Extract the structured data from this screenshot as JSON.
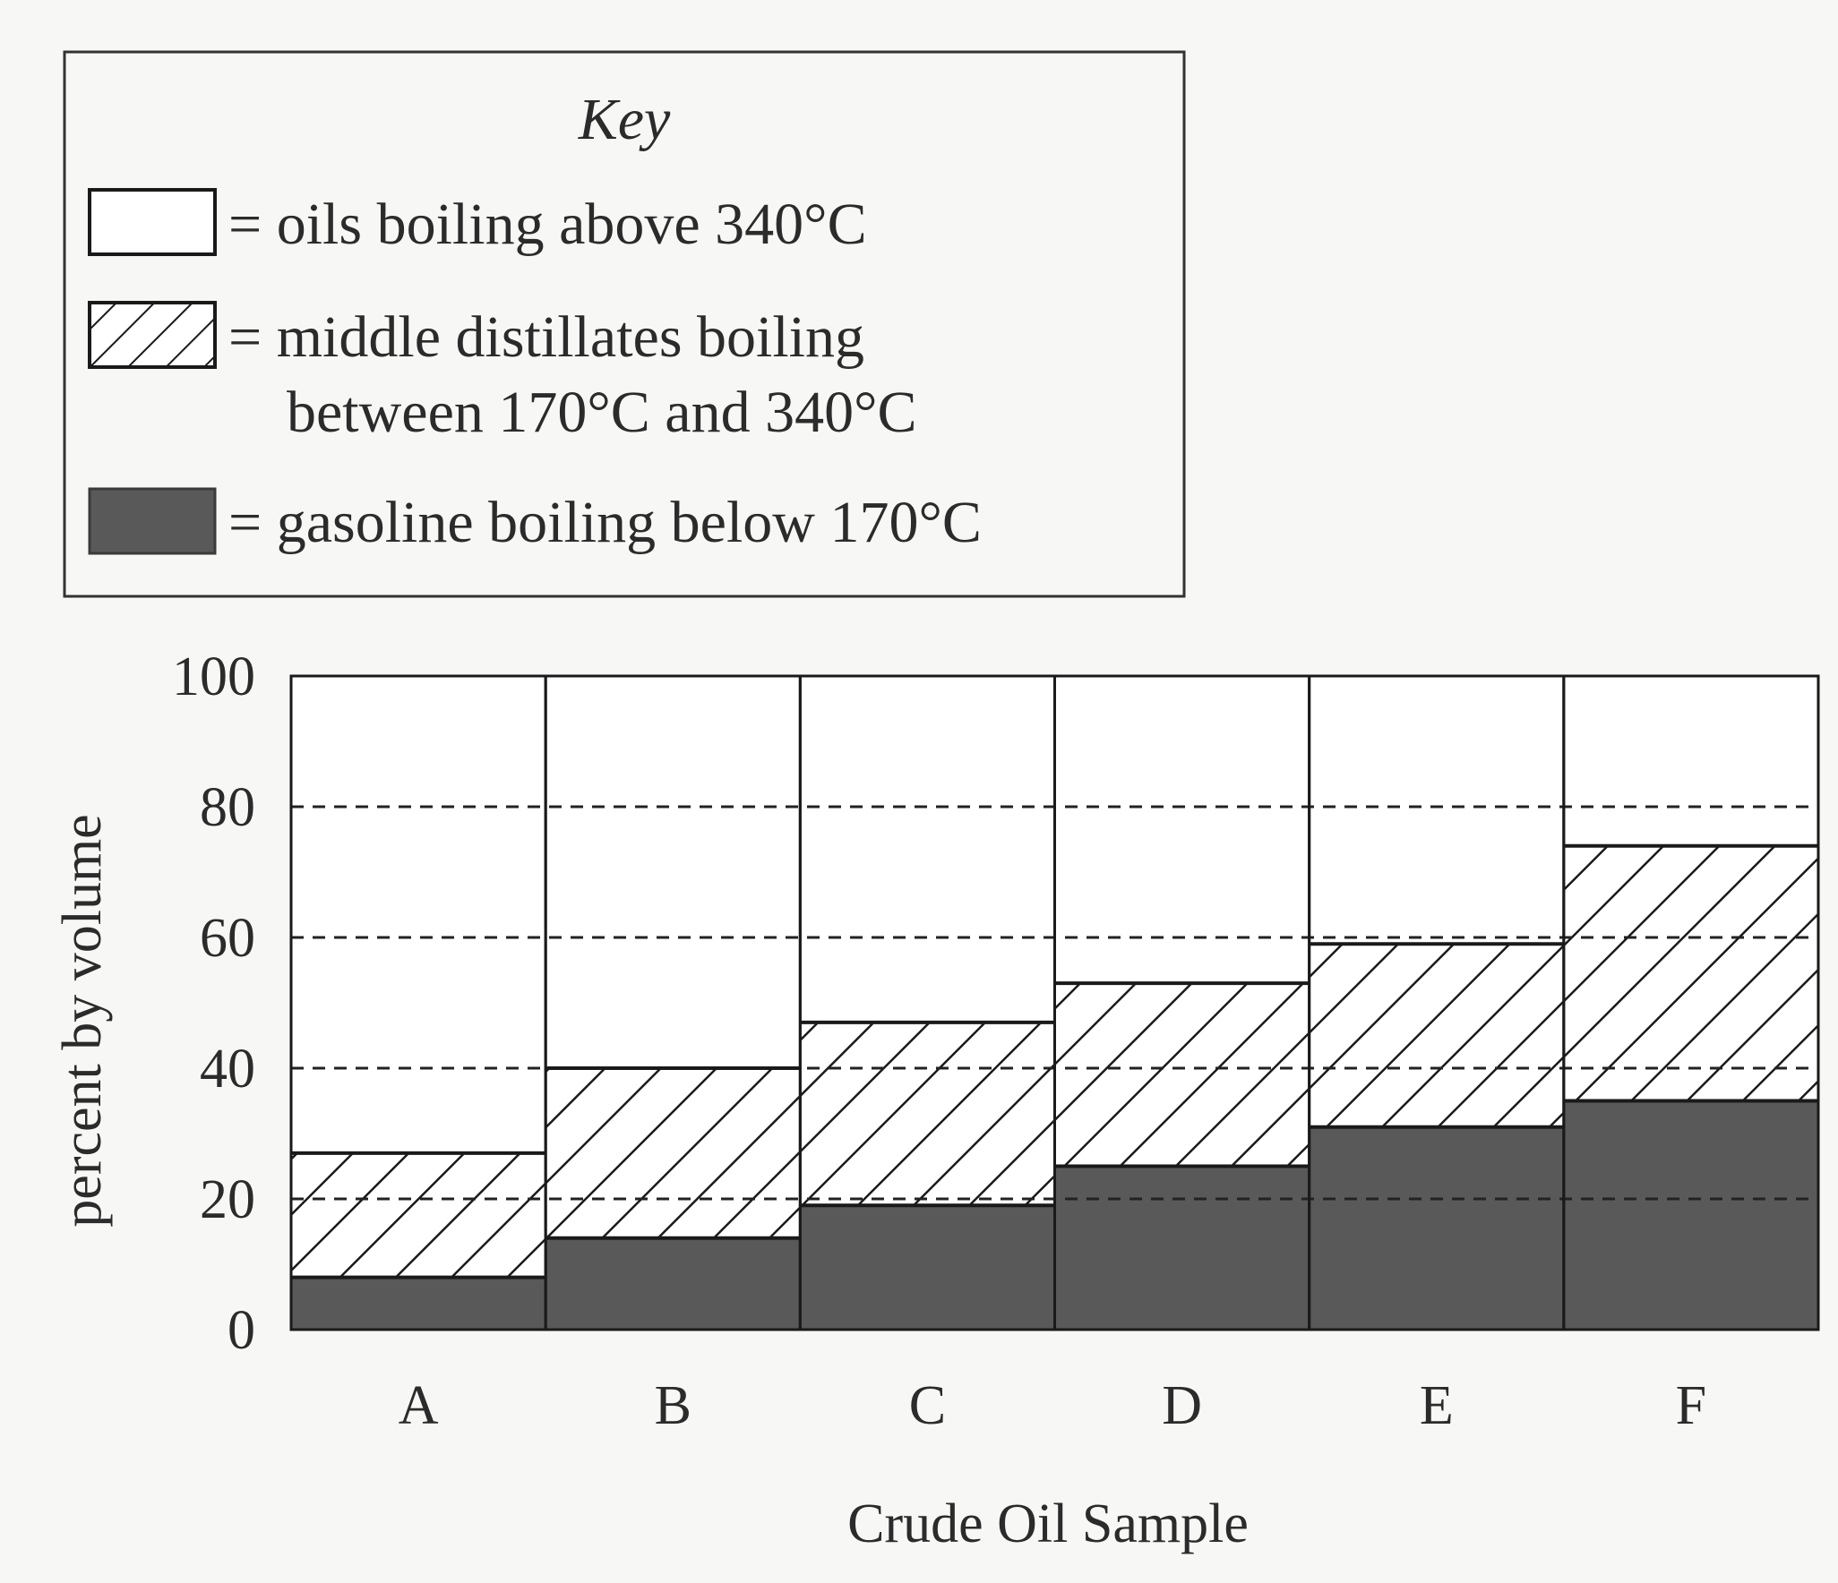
{
  "chart_data": {
    "type": "bar",
    "stacked": true,
    "categories": [
      "A",
      "B",
      "C",
      "D",
      "E",
      "F"
    ],
    "series": [
      {
        "name": "= gasoline boiling below 170°C",
        "values": [
          8,
          14,
          19,
          25,
          31,
          35
        ],
        "color": "#595959",
        "pattern": "solid"
      },
      {
        "name": "= middle distillates boiling between 170°C and 340°C",
        "values": [
          19,
          26,
          28,
          28,
          28,
          39
        ],
        "color": "#ffffff",
        "pattern": "hatched"
      },
      {
        "name": "= oils boiling above 340°C",
        "values": [
          73,
          60,
          53,
          47,
          41,
          26
        ],
        "color": "#ffffff",
        "pattern": "blank"
      }
    ],
    "title": "",
    "xlabel": "Crude Oil Sample",
    "ylabel": "percent by volume",
    "ylim": [
      0,
      100
    ],
    "yticks": [
      0,
      20,
      40,
      60,
      80,
      100
    ],
    "grid": "dashed horizontal at 20, 40, 60, 80",
    "legend": {
      "title": "Key",
      "placement": "top-left",
      "entries": [
        {
          "swatch": "blank",
          "line1": "= oils boiling above 340°C",
          "line2": ""
        },
        {
          "swatch": "hatched",
          "line1": "= middle distillates boiling",
          "line2": "between 170°C and 340°C"
        },
        {
          "swatch": "solid",
          "line1": "= gasoline boiling below 170°C",
          "line2": ""
        }
      ]
    }
  }
}
